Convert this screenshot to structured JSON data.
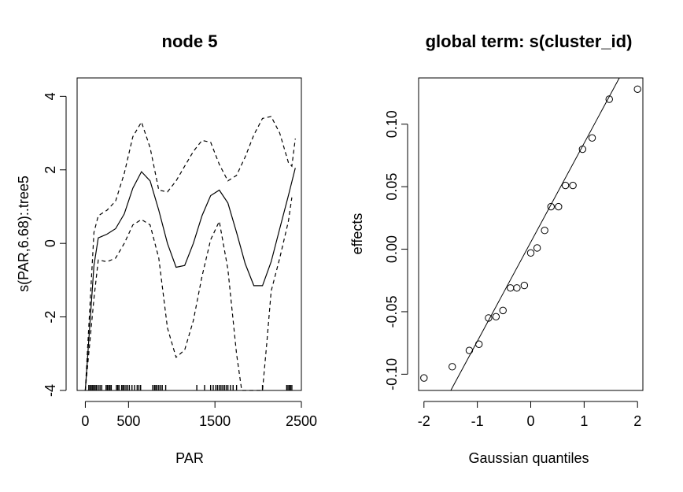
{
  "chart_data": [
    {
      "type": "line",
      "title": "node 5",
      "xlabel": "PAR",
      "ylabel": "s(PAR,6.68):.tree5",
      "xlim": [
        -95,
        2500
      ],
      "ylim": [
        -4,
        4.5
      ],
      "x_ticks": [
        0,
        500,
        1500,
        2500
      ],
      "x_tick_labels": [
        "0",
        "500",
        "1500",
        "2500"
      ],
      "y_ticks": [
        -4,
        -2,
        0,
        2,
        4
      ],
      "y_tick_labels": [
        "-4",
        "-2",
        "0",
        "2",
        "4"
      ],
      "series": [
        {
          "style": "solid",
          "x": [
            0,
            100,
            150,
            250,
            350,
            450,
            550,
            650,
            750,
            850,
            950,
            1050,
            1150,
            1250,
            1350,
            1450,
            1550,
            1650,
            1750,
            1850,
            1950,
            2050,
            2150,
            2250,
            2350,
            2430
          ],
          "y": [
            -4,
            -0.6,
            0.15,
            0.25,
            0.4,
            0.8,
            1.5,
            1.95,
            1.7,
            0.9,
            0.0,
            -0.65,
            -0.6,
            0.0,
            0.75,
            1.3,
            1.45,
            1.1,
            0.3,
            -0.55,
            -1.15,
            -1.15,
            -0.5,
            0.4,
            1.3,
            2.05
          ]
        },
        {
          "style": "dashed",
          "x": [
            0,
            100,
            150,
            250,
            350,
            450,
            550,
            650,
            750,
            850,
            950,
            1050,
            1150,
            1250,
            1350,
            1450,
            1550,
            1650,
            1750,
            1850,
            1950,
            2050,
            2150,
            2250,
            2350,
            2390,
            2430
          ],
          "y": [
            -4,
            0.3,
            0.75,
            0.9,
            1.15,
            1.9,
            2.9,
            3.3,
            2.6,
            1.45,
            1.4,
            1.7,
            2.1,
            2.5,
            2.8,
            2.75,
            2.15,
            1.7,
            1.85,
            2.35,
            2.95,
            3.4,
            3.45,
            3.0,
            2.2,
            2.1,
            2.85
          ]
        },
        {
          "style": "dashed",
          "x": [
            0,
            100,
            150,
            250,
            350,
            450,
            550,
            650,
            750,
            850,
            950,
            1050,
            1150,
            1250,
            1350,
            1450,
            1550,
            1650,
            1750,
            1810,
            2050,
            2100,
            2150,
            2250,
            2350,
            2390
          ],
          "y": [
            -4,
            -1.5,
            -0.45,
            -0.5,
            -0.4,
            0.0,
            0.5,
            0.65,
            0.5,
            -0.4,
            -2.3,
            -3.1,
            -2.9,
            -2.1,
            -0.9,
            0.1,
            0.6,
            -0.7,
            -3.0,
            -4.0,
            -4.0,
            -2.7,
            -1.3,
            -0.4,
            0.6,
            1.25
          ]
        }
      ],
      "rug_x": [
        40,
        55,
        70,
        85,
        100,
        115,
        130,
        150,
        170,
        190,
        240,
        255,
        270,
        285,
        300,
        360,
        375,
        390,
        420,
        435,
        450,
        470,
        490,
        510,
        540,
        570,
        600,
        620,
        640,
        780,
        800,
        815,
        830,
        850,
        870,
        890,
        930,
        1290,
        1380,
        1450,
        1480,
        1510,
        1530,
        1550,
        1570,
        1590,
        1610,
        1630,
        1650,
        1680,
        1710,
        1750,
        2050,
        2330,
        2345,
        2360,
        2375,
        2390
      ]
    },
    {
      "type": "scatter",
      "title": "global term: s(cluster_id)",
      "xlabel": "Gaussian quantiles",
      "ylabel": "effects",
      "xlim": [
        -2.1,
        2.1
      ],
      "ylim": [
        -0.113,
        0.137
      ],
      "x_ticks": [
        -2,
        -1,
        0,
        1,
        2
      ],
      "x_tick_labels": [
        "-2",
        "-1",
        "0",
        "1",
        "2"
      ],
      "y_ticks": [
        -0.1,
        -0.05,
        0.0,
        0.05,
        0.1
      ],
      "y_tick_labels": [
        "-0.10",
        "-0.05",
        "0.00",
        "0.05",
        "0.10"
      ],
      "points": {
        "x": [
          -2.0,
          -1.47,
          -1.15,
          -0.97,
          -0.79,
          -0.65,
          -0.52,
          -0.38,
          -0.26,
          -0.12,
          0.0,
          0.12,
          0.26,
          0.38,
          0.52,
          0.65,
          0.79,
          0.97,
          1.15,
          1.47,
          2.0
        ],
        "y": [
          -0.103,
          -0.094,
          -0.081,
          -0.076,
          -0.055,
          -0.054,
          -0.049,
          -0.031,
          -0.031,
          -0.029,
          -0.003,
          0.001,
          0.015,
          0.034,
          0.034,
          0.051,
          0.051,
          0.08,
          0.089,
          0.12,
          0.128
        ]
      },
      "reference_line": {
        "intercept": 0.0056,
        "slope": 0.0792
      }
    }
  ]
}
